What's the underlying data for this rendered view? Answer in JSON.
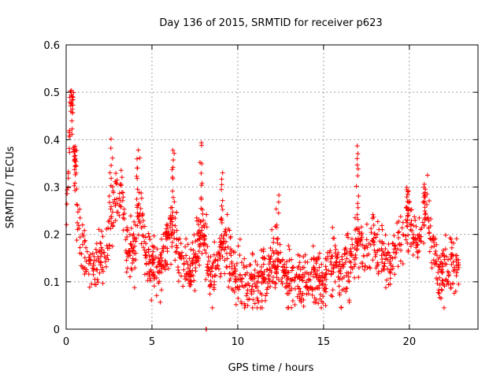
{
  "chart_data": {
    "type": "scatter",
    "title": "Day 136 of 2015, SRMTID for receiver p623",
    "xlabel": "GPS time / hours",
    "ylabel": "SRMTID / TECUs",
    "xlim": [
      0,
      24
    ],
    "ylim": [
      0,
      0.6
    ],
    "xticks": [
      0,
      5,
      10,
      15,
      20
    ],
    "xtick_labels": [
      "0",
      "5",
      "10",
      "15",
      "20"
    ],
    "yticks": [
      0,
      0.1,
      0.2,
      0.3,
      0.4,
      0.5,
      0.6
    ],
    "ytick_labels": [
      "0",
      "0.1",
      "0.2",
      "0.3",
      "0.4",
      "0.5",
      "0.6"
    ],
    "grid": true,
    "marker": "plus",
    "color": "#ff0000",
    "series": [
      {
        "name": "SRMTID",
        "x_start": 0.0,
        "x_end": 22.9,
        "trend": [
          [
            0.0,
            0.21
          ],
          [
            0.2,
            0.4
          ],
          [
            0.3,
            0.47
          ],
          [
            0.5,
            0.35
          ],
          [
            0.7,
            0.22
          ],
          [
            1.0,
            0.16
          ],
          [
            1.5,
            0.13
          ],
          [
            2.0,
            0.15
          ],
          [
            2.5,
            0.18
          ],
          [
            2.8,
            0.28
          ],
          [
            3.2,
            0.3
          ],
          [
            3.5,
            0.18
          ],
          [
            4.0,
            0.17
          ],
          [
            4.3,
            0.26
          ],
          [
            4.6,
            0.16
          ],
          [
            5.0,
            0.13
          ],
          [
            5.5,
            0.12
          ],
          [
            6.0,
            0.2
          ],
          [
            6.3,
            0.22
          ],
          [
            6.8,
            0.13
          ],
          [
            7.3,
            0.12
          ],
          [
            7.7,
            0.18
          ],
          [
            8.0,
            0.2
          ],
          [
            8.3,
            0.12
          ],
          [
            8.8,
            0.14
          ],
          [
            9.3,
            0.18
          ],
          [
            9.8,
            0.12
          ],
          [
            10.5,
            0.09
          ],
          [
            11.0,
            0.1
          ],
          [
            11.5,
            0.11
          ],
          [
            12.0,
            0.14
          ],
          [
            12.5,
            0.13
          ],
          [
            13.0,
            0.1
          ],
          [
            13.5,
            0.1
          ],
          [
            14.0,
            0.11
          ],
          [
            14.5,
            0.11
          ],
          [
            15.0,
            0.1
          ],
          [
            15.5,
            0.15
          ],
          [
            16.0,
            0.11
          ],
          [
            16.5,
            0.13
          ],
          [
            17.0,
            0.2
          ],
          [
            17.5,
            0.16
          ],
          [
            18.0,
            0.18
          ],
          [
            18.5,
            0.15
          ],
          [
            19.0,
            0.14
          ],
          [
            19.5,
            0.18
          ],
          [
            20.0,
            0.23
          ],
          [
            20.5,
            0.19
          ],
          [
            21.0,
            0.24
          ],
          [
            21.4,
            0.17
          ],
          [
            21.8,
            0.11
          ],
          [
            22.3,
            0.13
          ],
          [
            22.9,
            0.13
          ]
        ],
        "spikes": [
          [
            0.3,
            0.505
          ],
          [
            0.5,
            0.39
          ],
          [
            2.6,
            0.39
          ],
          [
            4.2,
            0.38
          ],
          [
            6.2,
            0.38
          ],
          [
            7.9,
            0.395
          ],
          [
            9.1,
            0.33
          ],
          [
            12.3,
            0.28
          ],
          [
            17.0,
            0.39
          ],
          [
            19.9,
            0.3
          ],
          [
            20.9,
            0.31
          ]
        ],
        "outliers": [
          [
            8.15,
            0.0
          ]
        ]
      }
    ]
  }
}
